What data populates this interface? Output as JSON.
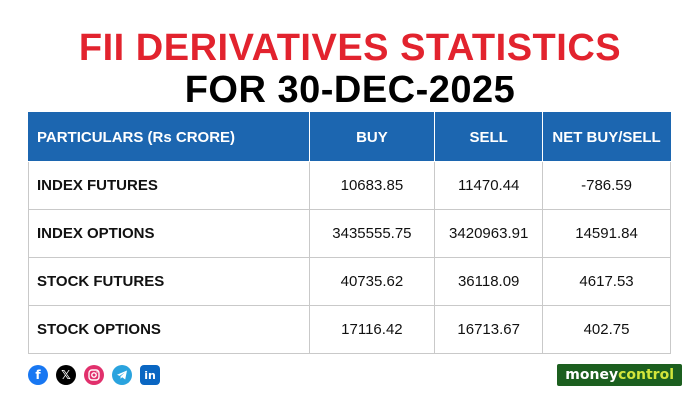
{
  "title": {
    "line1": "FII DERIVATIVES STATISTICS",
    "line2": "FOR 30-DEC-2025"
  },
  "colors": {
    "title_accent": "#e2232e",
    "header_bg": "#1c66b0",
    "brand_bg": "#1c5f1f",
    "brand_accent": "#d3e63b"
  },
  "table": {
    "headers": [
      "PARTICULARS (Rs CRORE)",
      "BUY",
      "SELL",
      "NET BUY/SELL"
    ],
    "rows": [
      [
        "INDEX FUTURES",
        "10683.85",
        "11470.44",
        "-786.59"
      ],
      [
        "INDEX OPTIONS",
        "3435555.75",
        "3420963.91",
        "14591.84"
      ],
      [
        "STOCK FUTURES",
        "40735.62",
        "36118.09",
        "4617.53"
      ],
      [
        "STOCK OPTIONS",
        "17116.42",
        "16713.67",
        "402.75"
      ]
    ]
  },
  "social_icons": [
    "facebook-icon",
    "x-icon",
    "instagram-icon",
    "telegram-icon",
    "linkedin-icon"
  ],
  "brand": {
    "part1": "money",
    "part2": "control"
  }
}
